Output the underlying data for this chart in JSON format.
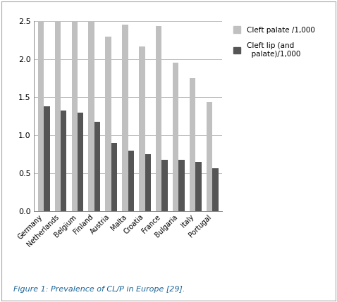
{
  "categories": [
    "Germany",
    "Netherlands",
    "Belgium",
    "Finland",
    "Austria",
    "Malta",
    "Croatia",
    "France",
    "Bulgaria",
    "Italy",
    "Portugal"
  ],
  "cleft_palate": [
    2.5,
    2.5,
    2.5,
    2.5,
    2.3,
    2.45,
    2.17,
    2.44,
    1.95,
    1.75,
    1.44
  ],
  "cleft_lip": [
    1.38,
    1.33,
    1.3,
    1.18,
    0.9,
    0.8,
    0.75,
    0.68,
    0.68,
    0.65,
    0.57
  ],
  "cleft_palate_color": "#c0c0c0",
  "cleft_lip_color": "#555555",
  "ylim": [
    0,
    2.5
  ],
  "yticks": [
    0,
    0.5,
    1.0,
    1.5,
    2.0,
    2.5
  ],
  "legend_label_palate": "Cleft palate /1,000",
  "legend_label_lip": "Cleft lip (and\n  palate)/1,000",
  "figure_caption": "Figure 1: Prevalence of CL/P in Europe [29].",
  "caption_color": "#1a6496",
  "background_color": "#ffffff",
  "bar_width": 0.35
}
